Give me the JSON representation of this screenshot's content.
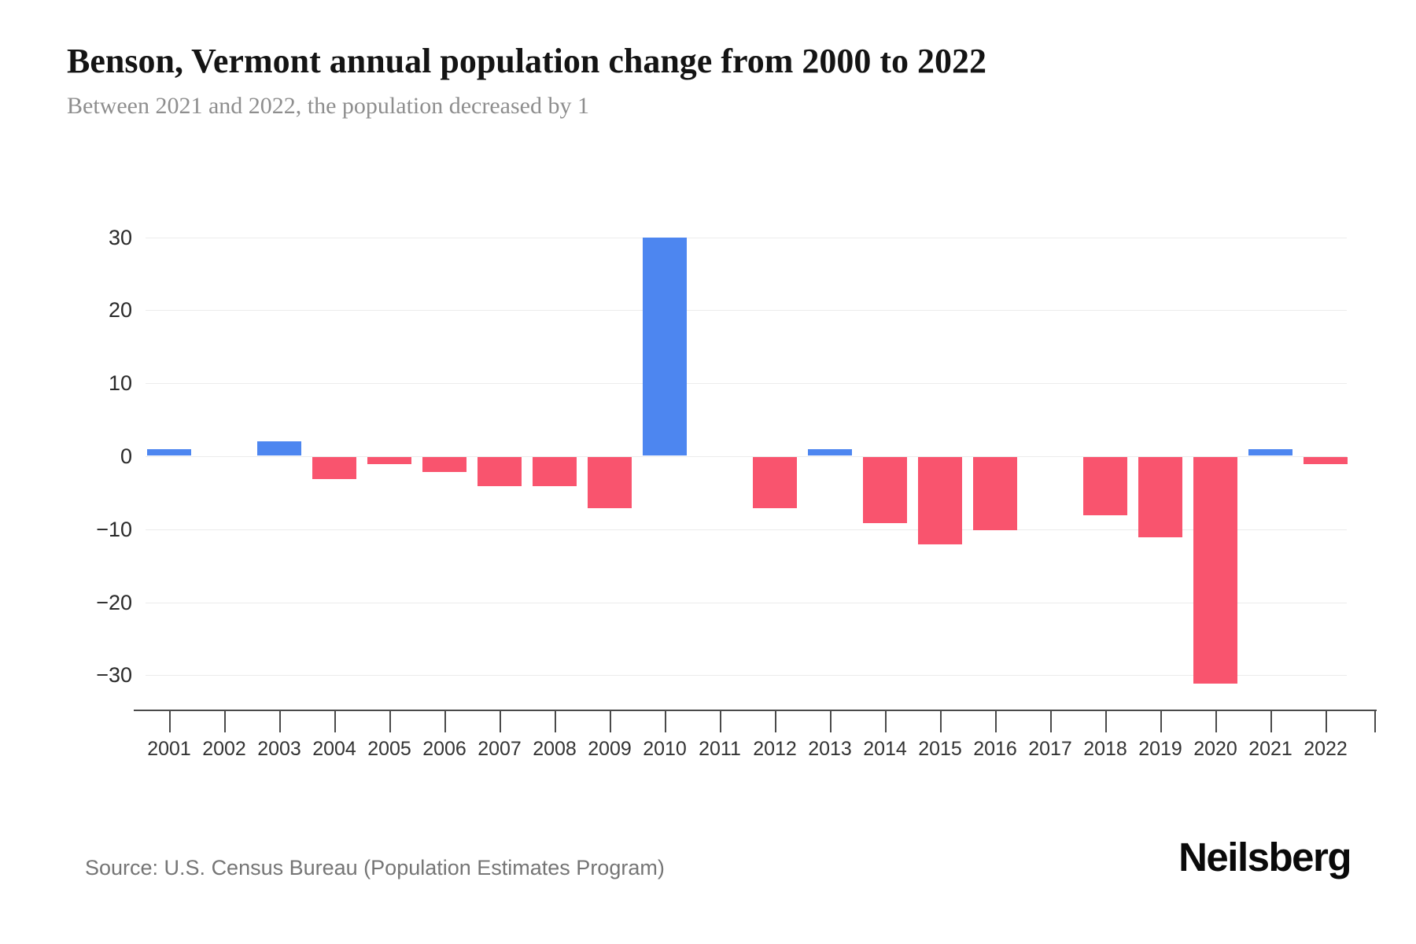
{
  "header": {
    "title": "Benson, Vermont annual population change from 2000 to 2022",
    "subtitle": "Between 2021 and 2022, the population decreased by 1"
  },
  "footer": {
    "source": "Source: U.S. Census Bureau (Population Estimates Program)",
    "brand": "Neilsberg"
  },
  "chart_data": {
    "type": "bar",
    "title": "Benson, Vermont annual population change from 2000 to 2022",
    "subtitle": "Between 2021 and 2022, the population decreased by 1",
    "xlabel": "",
    "ylabel": "",
    "categories": [
      "2001",
      "2002",
      "2003",
      "2004",
      "2005",
      "2006",
      "2007",
      "2008",
      "2009",
      "2010",
      "2011",
      "2012",
      "2013",
      "2014",
      "2015",
      "2016",
      "2017",
      "2018",
      "2019",
      "2020",
      "2021",
      "2022"
    ],
    "values": [
      1,
      0,
      2,
      -3,
      -1,
      -2,
      -4,
      -4,
      -7,
      30,
      0,
      -7,
      1,
      -9,
      -12,
      -10,
      0,
      -8,
      -11,
      -31,
      1,
      -1
    ],
    "yticks": [
      30,
      20,
      10,
      0,
      -10,
      -20,
      -30
    ],
    "ytick_labels": [
      "30",
      "20",
      "10",
      "0",
      "−10",
      "−20",
      "−30"
    ],
    "ylim": [
      -35,
      33
    ],
    "grid": true,
    "legend": false,
    "colors": {
      "positive": "#4d86f0",
      "negative": "#f9546e",
      "gridline": "#ececec",
      "axis": "#4a4a4a"
    }
  }
}
